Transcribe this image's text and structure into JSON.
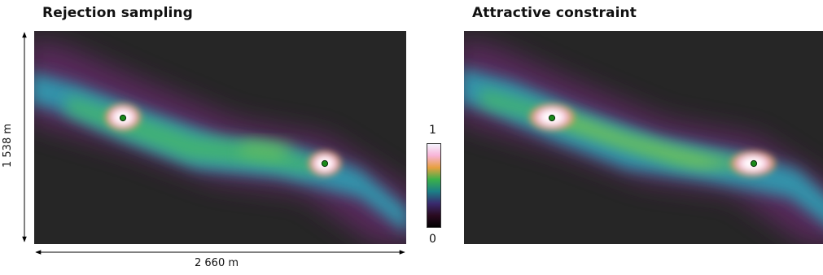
{
  "titles": {
    "left": "Rejection sampling",
    "right": "Attractive constraint"
  },
  "dimensions": {
    "width": "2 660 m",
    "height": "1 538 m"
  },
  "colorbar": {
    "max": "1",
    "min": "0",
    "stops": [
      "#f4f6ff",
      "#f8b4d8",
      "#e8a040",
      "#3bb04a",
      "#1b7f86",
      "#3a2a6e",
      "#2a0a20",
      "#000000"
    ]
  },
  "colors": {
    "background": "#262626",
    "marker_fill": "#1a8a1a",
    "marker_stroke": "#0a2a0a"
  }
}
